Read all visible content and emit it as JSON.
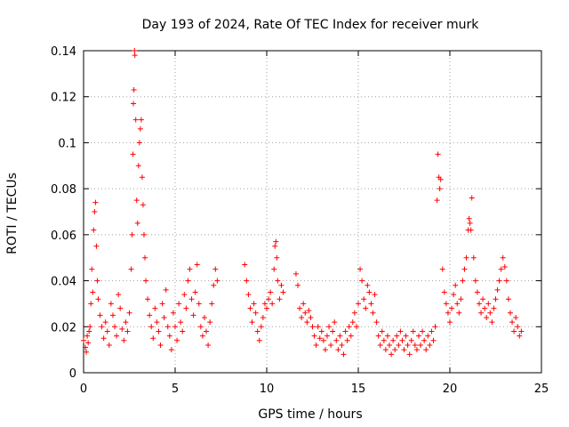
{
  "chart_data": {
    "type": "scatter",
    "title": "Day 193 of 2024, Rate Of TEC Index for receiver murk",
    "xlabel": "GPS time / hours",
    "ylabel": "ROTI / TECUs",
    "xlim": [
      0,
      25
    ],
    "ylim": [
      0,
      0.14
    ],
    "xticks": [
      "0",
      "5",
      "10",
      "15",
      "20",
      "25"
    ],
    "yticks": [
      "0",
      "0.02",
      "0.04",
      "0.06",
      "0.08",
      "0.1",
      "0.12",
      "0.14"
    ],
    "xtick_values": [
      0,
      5,
      10,
      15,
      20,
      25
    ],
    "ytick_values": [
      0,
      0.02,
      0.04,
      0.06,
      0.08,
      0.1,
      0.12,
      0.14
    ],
    "grid": true,
    "marker": "+",
    "color": "#ff0000",
    "series": [
      {
        "points": [
          [
            0.0,
            0.014
          ],
          [
            0.1,
            0.011
          ],
          [
            0.15,
            0.009
          ],
          [
            0.2,
            0.016
          ],
          [
            0.25,
            0.013
          ],
          [
            0.3,
            0.018
          ],
          [
            0.35,
            0.02
          ],
          [
            0.4,
            0.03
          ],
          [
            0.45,
            0.045
          ],
          [
            0.5,
            0.035
          ],
          [
            0.55,
            0.062
          ],
          [
            0.6,
            0.07
          ],
          [
            0.65,
            0.074
          ],
          [
            0.7,
            0.055
          ],
          [
            0.75,
            0.04
          ],
          [
            0.8,
            0.032
          ],
          [
            0.9,
            0.025
          ],
          [
            1.0,
            0.02
          ],
          [
            1.1,
            0.015
          ],
          [
            1.2,
            0.022
          ],
          [
            1.3,
            0.018
          ],
          [
            1.4,
            0.012
          ],
          [
            1.5,
            0.03
          ],
          [
            1.6,
            0.025
          ],
          [
            1.7,
            0.02
          ],
          [
            1.8,
            0.016
          ],
          [
            1.9,
            0.034
          ],
          [
            2.0,
            0.028
          ],
          [
            2.1,
            0.019
          ],
          [
            2.2,
            0.014
          ],
          [
            2.3,
            0.022
          ],
          [
            2.4,
            0.018
          ],
          [
            2.5,
            0.026
          ],
          [
            2.6,
            0.045
          ],
          [
            2.65,
            0.06
          ],
          [
            2.7,
            0.095
          ],
          [
            2.72,
            0.117
          ],
          [
            2.75,
            0.123
          ],
          [
            2.78,
            0.14
          ],
          [
            2.8,
            0.138
          ],
          [
            2.85,
            0.11
          ],
          [
            2.9,
            0.075
          ],
          [
            2.95,
            0.065
          ],
          [
            3.0,
            0.09
          ],
          [
            3.05,
            0.1
          ],
          [
            3.1,
            0.106
          ],
          [
            3.15,
            0.11
          ],
          [
            3.2,
            0.085
          ],
          [
            3.25,
            0.073
          ],
          [
            3.3,
            0.06
          ],
          [
            3.35,
            0.05
          ],
          [
            3.4,
            0.04
          ],
          [
            3.5,
            0.032
          ],
          [
            3.6,
            0.025
          ],
          [
            3.7,
            0.02
          ],
          [
            3.8,
            0.015
          ],
          [
            3.9,
            0.028
          ],
          [
            4.0,
            0.022
          ],
          [
            4.1,
            0.018
          ],
          [
            4.2,
            0.012
          ],
          [
            4.3,
            0.03
          ],
          [
            4.4,
            0.024
          ],
          [
            4.5,
            0.036
          ],
          [
            4.6,
            0.02
          ],
          [
            4.7,
            0.016
          ],
          [
            4.8,
            0.01
          ],
          [
            4.9,
            0.026
          ],
          [
            5.0,
            0.02
          ],
          [
            5.1,
            0.014
          ],
          [
            5.2,
            0.03
          ],
          [
            5.3,
            0.022
          ],
          [
            5.4,
            0.018
          ],
          [
            5.5,
            0.034
          ],
          [
            5.6,
            0.028
          ],
          [
            5.7,
            0.04
          ],
          [
            5.8,
            0.045
          ],
          [
            5.9,
            0.032
          ],
          [
            6.0,
            0.025
          ],
          [
            6.1,
            0.035
          ],
          [
            6.2,
            0.047
          ],
          [
            6.3,
            0.03
          ],
          [
            6.4,
            0.02
          ],
          [
            6.5,
            0.016
          ],
          [
            6.6,
            0.024
          ],
          [
            6.7,
            0.018
          ],
          [
            6.8,
            0.012
          ],
          [
            6.9,
            0.022
          ],
          [
            7.0,
            0.03
          ],
          [
            7.1,
            0.038
          ],
          [
            7.2,
            0.045
          ],
          [
            7.3,
            0.04
          ],
          [
            8.8,
            0.047
          ],
          [
            8.9,
            0.04
          ],
          [
            9.0,
            0.034
          ],
          [
            9.1,
            0.028
          ],
          [
            9.2,
            0.022
          ],
          [
            9.3,
            0.03
          ],
          [
            9.4,
            0.026
          ],
          [
            9.5,
            0.018
          ],
          [
            9.6,
            0.014
          ],
          [
            9.7,
            0.02
          ],
          [
            9.8,
            0.024
          ],
          [
            9.9,
            0.03
          ],
          [
            10.0,
            0.028
          ],
          [
            10.1,
            0.032
          ],
          [
            10.2,
            0.035
          ],
          [
            10.3,
            0.03
          ],
          [
            10.4,
            0.045
          ],
          [
            10.45,
            0.055
          ],
          [
            10.5,
            0.057
          ],
          [
            10.55,
            0.05
          ],
          [
            10.6,
            0.04
          ],
          [
            10.7,
            0.032
          ],
          [
            10.8,
            0.038
          ],
          [
            10.9,
            0.035
          ],
          [
            11.6,
            0.043
          ],
          [
            11.7,
            0.038
          ],
          [
            11.8,
            0.028
          ],
          [
            11.9,
            0.024
          ],
          [
            12.0,
            0.03
          ],
          [
            12.1,
            0.026
          ],
          [
            12.2,
            0.022
          ],
          [
            12.3,
            0.027
          ],
          [
            12.4,
            0.024
          ],
          [
            12.5,
            0.02
          ],
          [
            12.6,
            0.016
          ],
          [
            12.7,
            0.012
          ],
          [
            12.8,
            0.02
          ],
          [
            12.9,
            0.015
          ],
          [
            13.0,
            0.018
          ],
          [
            13.1,
            0.014
          ],
          [
            13.2,
            0.01
          ],
          [
            13.3,
            0.016
          ],
          [
            13.4,
            0.02
          ],
          [
            13.5,
            0.012
          ],
          [
            13.6,
            0.018
          ],
          [
            13.7,
            0.022
          ],
          [
            13.8,
            0.014
          ],
          [
            13.9,
            0.01
          ],
          [
            14.0,
            0.016
          ],
          [
            14.1,
            0.012
          ],
          [
            14.2,
            0.008
          ],
          [
            14.3,
            0.018
          ],
          [
            14.4,
            0.014
          ],
          [
            14.5,
            0.02
          ],
          [
            14.6,
            0.016
          ],
          [
            14.7,
            0.022
          ],
          [
            14.8,
            0.026
          ],
          [
            14.9,
            0.02
          ],
          [
            15.0,
            0.03
          ],
          [
            15.1,
            0.045
          ],
          [
            15.2,
            0.04
          ],
          [
            15.3,
            0.032
          ],
          [
            15.4,
            0.028
          ],
          [
            15.5,
            0.038
          ],
          [
            15.6,
            0.035
          ],
          [
            15.7,
            0.03
          ],
          [
            15.8,
            0.026
          ],
          [
            15.9,
            0.034
          ],
          [
            16.0,
            0.022
          ],
          [
            16.1,
            0.016
          ],
          [
            16.2,
            0.012
          ],
          [
            16.3,
            0.018
          ],
          [
            16.4,
            0.014
          ],
          [
            16.5,
            0.01
          ],
          [
            16.6,
            0.016
          ],
          [
            16.7,
            0.012
          ],
          [
            16.8,
            0.008
          ],
          [
            16.9,
            0.014
          ],
          [
            17.0,
            0.01
          ],
          [
            17.1,
            0.016
          ],
          [
            17.2,
            0.012
          ],
          [
            17.3,
            0.018
          ],
          [
            17.4,
            0.014
          ],
          [
            17.5,
            0.01
          ],
          [
            17.6,
            0.016
          ],
          [
            17.7,
            0.012
          ],
          [
            17.8,
            0.008
          ],
          [
            17.9,
            0.014
          ],
          [
            18.0,
            0.018
          ],
          [
            18.1,
            0.012
          ],
          [
            18.2,
            0.01
          ],
          [
            18.3,
            0.016
          ],
          [
            18.4,
            0.012
          ],
          [
            18.5,
            0.018
          ],
          [
            18.6,
            0.014
          ],
          [
            18.7,
            0.01
          ],
          [
            18.8,
            0.016
          ],
          [
            18.9,
            0.012
          ],
          [
            19.0,
            0.018
          ],
          [
            19.1,
            0.014
          ],
          [
            19.2,
            0.02
          ],
          [
            19.3,
            0.075
          ],
          [
            19.35,
            0.095
          ],
          [
            19.4,
            0.085
          ],
          [
            19.45,
            0.08
          ],
          [
            19.5,
            0.084
          ],
          [
            19.6,
            0.045
          ],
          [
            19.7,
            0.035
          ],
          [
            19.8,
            0.03
          ],
          [
            19.9,
            0.026
          ],
          [
            20.0,
            0.022
          ],
          [
            20.1,
            0.028
          ],
          [
            20.2,
            0.034
          ],
          [
            20.3,
            0.038
          ],
          [
            20.4,
            0.03
          ],
          [
            20.5,
            0.026
          ],
          [
            20.6,
            0.032
          ],
          [
            20.7,
            0.04
          ],
          [
            20.8,
            0.045
          ],
          [
            20.9,
            0.05
          ],
          [
            21.0,
            0.062
          ],
          [
            21.05,
            0.067
          ],
          [
            21.1,
            0.065
          ],
          [
            21.15,
            0.062
          ],
          [
            21.2,
            0.076
          ],
          [
            21.3,
            0.05
          ],
          [
            21.4,
            0.04
          ],
          [
            21.5,
            0.035
          ],
          [
            21.6,
            0.03
          ],
          [
            21.7,
            0.026
          ],
          [
            21.8,
            0.032
          ],
          [
            21.9,
            0.028
          ],
          [
            22.0,
            0.024
          ],
          [
            22.1,
            0.03
          ],
          [
            22.2,
            0.026
          ],
          [
            22.3,
            0.022
          ],
          [
            22.4,
            0.028
          ],
          [
            22.5,
            0.032
          ],
          [
            22.6,
            0.036
          ],
          [
            22.7,
            0.04
          ],
          [
            22.8,
            0.045
          ],
          [
            22.9,
            0.05
          ],
          [
            23.0,
            0.046
          ],
          [
            23.1,
            0.04
          ],
          [
            23.2,
            0.032
          ],
          [
            23.3,
            0.026
          ],
          [
            23.4,
            0.022
          ],
          [
            23.5,
            0.018
          ],
          [
            23.6,
            0.024
          ],
          [
            23.7,
            0.02
          ],
          [
            23.8,
            0.016
          ],
          [
            23.9,
            0.018
          ]
        ]
      }
    ]
  }
}
